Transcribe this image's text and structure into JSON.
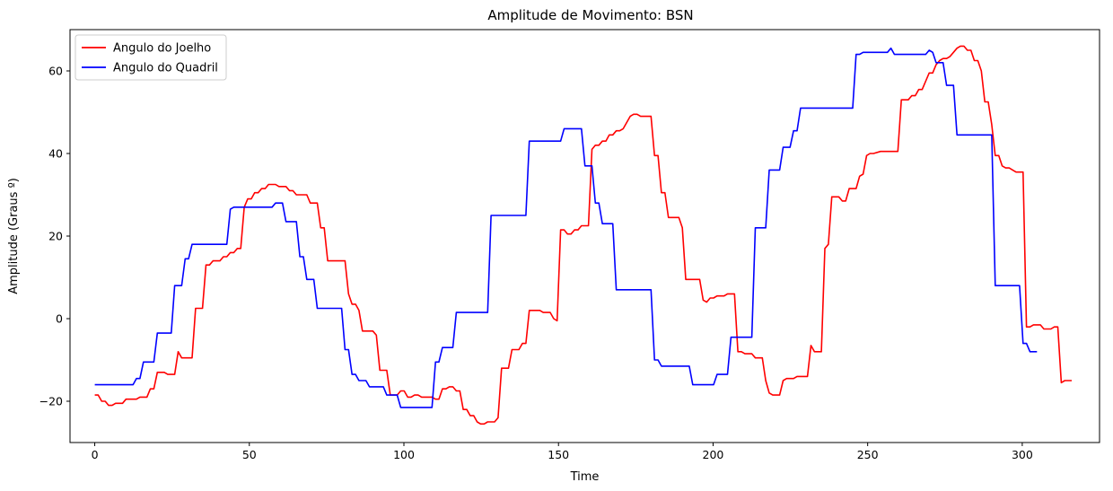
{
  "chart_data": {
    "type": "line",
    "title": "Amplitude de Movimento: BSN",
    "xlabel": "Time",
    "ylabel": "Amplitude (Graus º)",
    "xlim": [
      -8,
      325
    ],
    "ylim": [
      -30,
      70
    ],
    "xticks": [
      0,
      50,
      100,
      150,
      200,
      250,
      300
    ],
    "yticks": [
      -20,
      0,
      20,
      40,
      60
    ],
    "grid": false,
    "legend_position": "top-left",
    "series": [
      {
        "name": "Angulo do Joelho",
        "color": "#ff0000",
        "points": [
          [
            0,
            -18.5
          ],
          [
            1,
            -18.5
          ],
          [
            2,
            -20
          ],
          [
            3,
            -20
          ],
          [
            4,
            -21
          ],
          [
            5,
            -21
          ],
          [
            6,
            -20.5
          ],
          [
            8,
            -20.5
          ],
          [
            9,
            -19.5
          ],
          [
            12,
            -19.5
          ],
          [
            13,
            -19
          ],
          [
            15,
            -19
          ],
          [
            16,
            -17
          ],
          [
            17,
            -17
          ],
          [
            18,
            -13
          ],
          [
            20,
            -13
          ],
          [
            21,
            -13.5
          ],
          [
            23,
            -13.5
          ],
          [
            24,
            -8
          ],
          [
            25,
            -9.5
          ],
          [
            28,
            -9.5
          ],
          [
            29,
            2.5
          ],
          [
            31,
            2.5
          ],
          [
            32,
            13
          ],
          [
            33,
            13
          ],
          [
            34,
            14
          ],
          [
            36,
            14
          ],
          [
            37,
            15
          ],
          [
            38,
            15
          ],
          [
            39,
            16
          ],
          [
            40,
            16
          ],
          [
            41,
            17
          ],
          [
            42,
            17
          ],
          [
            43,
            27
          ],
          [
            44,
            29
          ],
          [
            45,
            29
          ],
          [
            46,
            30.5
          ],
          [
            47,
            30.5
          ],
          [
            48,
            31.5
          ],
          [
            49,
            31.5
          ],
          [
            50,
            32.5
          ],
          [
            52,
            32.5
          ],
          [
            53,
            32
          ],
          [
            55,
            32
          ],
          [
            56,
            31
          ],
          [
            57,
            31
          ],
          [
            58,
            30
          ],
          [
            61,
            30
          ],
          [
            62,
            28
          ],
          [
            64,
            28
          ],
          [
            65,
            22
          ],
          [
            66,
            22
          ],
          [
            67,
            14
          ],
          [
            68,
            14
          ],
          [
            69,
            14
          ],
          [
            70,
            14
          ],
          [
            71,
            14
          ],
          [
            72,
            14
          ],
          [
            73,
            6
          ],
          [
            74,
            3.5
          ],
          [
            75,
            3.5
          ],
          [
            76,
            2
          ],
          [
            77,
            -3
          ],
          [
            80,
            -3
          ],
          [
            81,
            -4
          ],
          [
            82,
            -12.5
          ],
          [
            84,
            -12.5
          ],
          [
            85,
            -18.5
          ],
          [
            87,
            -18.5
          ],
          [
            88,
            -17.5
          ],
          [
            89,
            -17.5
          ],
          [
            90,
            -19
          ],
          [
            91,
            -19
          ],
          [
            92,
            -18.5
          ],
          [
            93,
            -18.5
          ],
          [
            94,
            -19
          ],
          [
            97,
            -19
          ],
          [
            98,
            -19.5
          ],
          [
            99,
            -19.5
          ],
          [
            100,
            -17
          ],
          [
            101,
            -17
          ],
          [
            102,
            -16.5
          ],
          [
            103,
            -16.5
          ],
          [
            104,
            -17.5
          ],
          [
            105,
            -17.5
          ],
          [
            106,
            -22
          ],
          [
            107,
            -22
          ],
          [
            108,
            -23.5
          ],
          [
            109,
            -23.5
          ],
          [
            110,
            -25
          ],
          [
            111,
            -25.5
          ],
          [
            112,
            -25.5
          ],
          [
            113,
            -25
          ],
          [
            115,
            -25
          ],
          [
            116,
            -24
          ],
          [
            117,
            -12
          ],
          [
            119,
            -12
          ],
          [
            120,
            -7.5
          ],
          [
            122,
            -7.5
          ],
          [
            123,
            -6
          ],
          [
            124,
            -6
          ],
          [
            125,
            2
          ],
          [
            128,
            2
          ],
          [
            129,
            1.5
          ],
          [
            131,
            1.5
          ],
          [
            132,
            0
          ],
          [
            133,
            -0.5
          ],
          [
            134,
            21.5
          ],
          [
            135,
            21.5
          ],
          [
            136,
            20.5
          ],
          [
            137,
            20.5
          ],
          [
            138,
            21.5
          ],
          [
            139,
            21.5
          ],
          [
            140,
            22.5
          ],
          [
            142,
            22.5
          ],
          [
            143,
            41
          ],
          [
            144,
            42
          ],
          [
            145,
            42
          ],
          [
            146,
            43
          ],
          [
            147,
            43
          ],
          [
            148,
            44.5
          ],
          [
            149,
            44.5
          ],
          [
            150,
            45.5
          ],
          [
            151,
            45.5
          ],
          [
            152,
            46
          ],
          [
            153,
            47.5
          ],
          [
            154,
            49
          ],
          [
            155,
            49.5
          ],
          [
            156,
            49.5
          ],
          [
            157,
            49
          ],
          [
            160,
            49
          ],
          [
            161,
            39.5
          ],
          [
            162,
            39.5
          ],
          [
            163,
            30.5
          ],
          [
            164,
            30.5
          ],
          [
            165,
            24.5
          ],
          [
            168,
            24.5
          ],
          [
            169,
            22
          ],
          [
            170,
            9.5
          ],
          [
            174,
            9.5
          ],
          [
            175,
            4.5
          ],
          [
            176,
            4
          ],
          [
            177,
            5
          ],
          [
            178,
            5
          ],
          [
            179,
            5.5
          ],
          [
            181,
            5.5
          ],
          [
            182,
            6
          ],
          [
            184,
            6
          ],
          [
            185,
            -8
          ],
          [
            186,
            -8
          ],
          [
            187,
            -8.5
          ],
          [
            189,
            -8.5
          ],
          [
            190,
            -9.5
          ],
          [
            192,
            -9.5
          ],
          [
            193,
            -15
          ],
          [
            194,
            -18
          ],
          [
            195,
            -18.5
          ],
          [
            197,
            -18.5
          ],
          [
            198,
            -15
          ],
          [
            199,
            -14.5
          ],
          [
            201,
            -14.5
          ],
          [
            202,
            -14
          ],
          [
            205,
            -14
          ],
          [
            206,
            -6.5
          ],
          [
            207,
            -8
          ],
          [
            209,
            -8
          ],
          [
            210,
            17
          ],
          [
            211,
            18
          ],
          [
            212,
            29.5
          ],
          [
            214,
            29.5
          ],
          [
            215,
            28.5
          ],
          [
            216,
            28.5
          ],
          [
            217,
            31.5
          ],
          [
            219,
            31.5
          ],
          [
            220,
            34.5
          ],
          [
            221,
            35
          ],
          [
            222,
            39.5
          ],
          [
            223,
            40
          ],
          [
            224,
            40
          ],
          [
            226,
            40.5
          ],
          [
            229,
            40.5
          ],
          [
            230,
            40.5
          ],
          [
            231,
            40.5
          ],
          [
            232,
            53
          ],
          [
            233,
            53
          ],
          [
            234,
            53
          ],
          [
            235,
            54
          ],
          [
            236,
            54
          ],
          [
            237,
            55.5
          ],
          [
            238,
            55.5
          ],
          [
            239,
            57.5
          ],
          [
            240,
            59.5
          ],
          [
            241,
            59.5
          ],
          [
            242,
            61.5
          ],
          [
            243,
            62.5
          ],
          [
            244,
            63
          ],
          [
            245,
            63
          ],
          [
            246,
            63.5
          ],
          [
            247,
            64.5
          ],
          [
            248,
            65.5
          ],
          [
            249,
            66
          ],
          [
            250,
            66
          ],
          [
            251,
            65
          ],
          [
            252,
            65
          ],
          [
            253,
            62.5
          ],
          [
            254,
            62.5
          ],
          [
            255,
            60
          ],
          [
            256,
            52.5
          ],
          [
            257,
            52.5
          ],
          [
            258,
            47
          ],
          [
            259,
            39.5
          ],
          [
            260,
            39.5
          ],
          [
            261,
            37
          ],
          [
            262,
            36.5
          ],
          [
            263,
            36.5
          ],
          [
            264,
            36
          ],
          [
            265,
            35.5
          ],
          [
            267,
            35.5
          ],
          [
            268,
            -2
          ],
          [
            269,
            -2
          ],
          [
            270,
            -1.5
          ],
          [
            272,
            -1.5
          ],
          [
            273,
            -2.5
          ],
          [
            275,
            -2.5
          ],
          [
            276,
            -2
          ],
          [
            277,
            -2
          ],
          [
            278,
            -15.5
          ],
          [
            279,
            -15
          ],
          [
            281,
            -15
          ]
        ]
      },
      {
        "name": "Angulo do Quadril",
        "color": "#0000ff",
        "points": [
          [
            0,
            -16
          ],
          [
            11,
            -16
          ],
          [
            12,
            -14.5
          ],
          [
            13,
            -14.5
          ],
          [
            14,
            -10.5
          ],
          [
            17,
            -10.5
          ],
          [
            18,
            -3.5
          ],
          [
            22,
            -3.5
          ],
          [
            23,
            8
          ],
          [
            25,
            8
          ],
          [
            26,
            14.5
          ],
          [
            27,
            14.5
          ],
          [
            28,
            18
          ],
          [
            38,
            18
          ],
          [
            39,
            26.5
          ],
          [
            40,
            27
          ],
          [
            51,
            27
          ],
          [
            52,
            28
          ],
          [
            54,
            28
          ],
          [
            55,
            23.5
          ],
          [
            58,
            23.5
          ],
          [
            59,
            15
          ],
          [
            60,
            15
          ],
          [
            61,
            9.5
          ],
          [
            63,
            9.5
          ],
          [
            64,
            2.5
          ],
          [
            71,
            2.5
          ],
          [
            72,
            -7.5
          ],
          [
            73,
            -7.5
          ],
          [
            74,
            -13.5
          ],
          [
            75,
            -13.5
          ],
          [
            76,
            -15
          ],
          [
            78,
            -15
          ],
          [
            79,
            -16.5
          ],
          [
            83,
            -16.5
          ],
          [
            84,
            -18.5
          ],
          [
            87,
            -18.5
          ],
          [
            88,
            -21.5
          ],
          [
            97,
            -21.5
          ],
          [
            98,
            -10.5
          ],
          [
            99,
            -10.5
          ],
          [
            100,
            -7
          ],
          [
            103,
            -7
          ],
          [
            104,
            1.5
          ],
          [
            113,
            1.5
          ],
          [
            114,
            25
          ],
          [
            124,
            25
          ],
          [
            125,
            43
          ],
          [
            134,
            43
          ],
          [
            135,
            46
          ],
          [
            140,
            46
          ],
          [
            141,
            37
          ],
          [
            143,
            37
          ],
          [
            144,
            28
          ],
          [
            145,
            28
          ],
          [
            146,
            23
          ],
          [
            149,
            23
          ],
          [
            150,
            7
          ],
          [
            160,
            7
          ],
          [
            161,
            -10
          ],
          [
            162,
            -10
          ],
          [
            163,
            -11.5
          ],
          [
            171,
            -11.5
          ],
          [
            172,
            -16
          ],
          [
            178,
            -16
          ],
          [
            179,
            -13.5
          ],
          [
            182,
            -13.5
          ],
          [
            183,
            -4.5
          ],
          [
            189,
            -4.5
          ],
          [
            190,
            22
          ],
          [
            193,
            22
          ],
          [
            194,
            36
          ],
          [
            197,
            36
          ],
          [
            198,
            41.5
          ],
          [
            200,
            41.5
          ],
          [
            201,
            45.5
          ],
          [
            202,
            45.5
          ],
          [
            203,
            51
          ],
          [
            218,
            51
          ],
          [
            219,
            64
          ],
          [
            220,
            64
          ],
          [
            221,
            64.5
          ],
          [
            228,
            64.5
          ],
          [
            229,
            65.5
          ],
          [
            230,
            64
          ],
          [
            239,
            64
          ],
          [
            240,
            65
          ],
          [
            241,
            64.5
          ],
          [
            242,
            62
          ],
          [
            244,
            62
          ],
          [
            245,
            56.5
          ],
          [
            247,
            56.5
          ],
          [
            248,
            44.5
          ],
          [
            258,
            44.5
          ],
          [
            259,
            8
          ],
          [
            266,
            8
          ],
          [
            267,
            -6
          ],
          [
            268,
            -6
          ],
          [
            269,
            -8
          ],
          [
            271,
            -8
          ]
        ]
      }
    ]
  }
}
